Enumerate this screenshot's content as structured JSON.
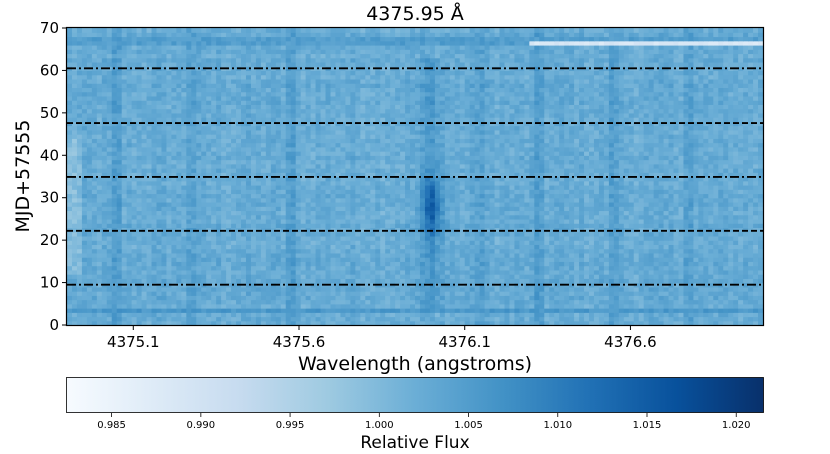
{
  "chart_data": {
    "type": "heatmap",
    "title": "4375.95 Å",
    "xlabel": "Wavelength (angstroms)",
    "ylabel": "MJD+57555",
    "xlim": [
      4374.9,
      4377.0
    ],
    "ylim": [
      0,
      70
    ],
    "x_ticks": [
      4375.1,
      4375.6,
      4376.1,
      4376.6
    ],
    "x_tick_labels": [
      "4375.1",
      "4375.6",
      "4376.1",
      "4376.6"
    ],
    "y_ticks": [
      0,
      10,
      20,
      30,
      40,
      50,
      60,
      70
    ],
    "y_tick_labels": [
      "0",
      "10",
      "20",
      "30",
      "40",
      "50",
      "60",
      "70"
    ],
    "colormap": "Blues",
    "color_low": "#f7fbff",
    "color_high": "#08306b",
    "base_flux": 1.0025,
    "absorption_feature": {
      "center_wavelength": 4376.0,
      "center_mjd_offset": 28,
      "peak_relative_flux": 1.015,
      "extent_mjd_offset": [
        3,
        63
      ]
    },
    "vertical_stripes_wavelength": [
      4375.05,
      4375.28,
      4375.57,
      4376.15,
      4376.33,
      4376.55,
      4376.78
    ],
    "horizontal_bands": [
      {
        "mjd_offset": 3.5,
        "relative_flux": 1.006
      },
      {
        "mjd_offset": 66.7,
        "relative_flux": 1.005
      }
    ],
    "bright_streak": {
      "mjd_offset": 66.5,
      "wavelength_range": [
        4376.3,
        4377.0
      ],
      "relative_flux": 0.987
    },
    "reference_lines": [
      {
        "mjd_offset": 9.5,
        "style": "dashdot"
      },
      {
        "mjd_offset": 22.2,
        "style": "dashed"
      },
      {
        "mjd_offset": 34.9,
        "style": "dashdot"
      },
      {
        "mjd_offset": 47.6,
        "style": "dashed"
      },
      {
        "mjd_offset": 60.5,
        "style": "dashdot"
      }
    ],
    "colorbar": {
      "label": "Relative Flux",
      "range": [
        0.9825,
        1.0215
      ],
      "ticks": [
        0.985,
        0.99,
        0.995,
        1.0,
        1.005,
        1.01,
        1.015,
        1.02
      ],
      "tick_labels": [
        "0.985",
        "0.990",
        "0.995",
        "1.000",
        "1.005",
        "1.010",
        "1.015",
        "1.020"
      ]
    }
  }
}
